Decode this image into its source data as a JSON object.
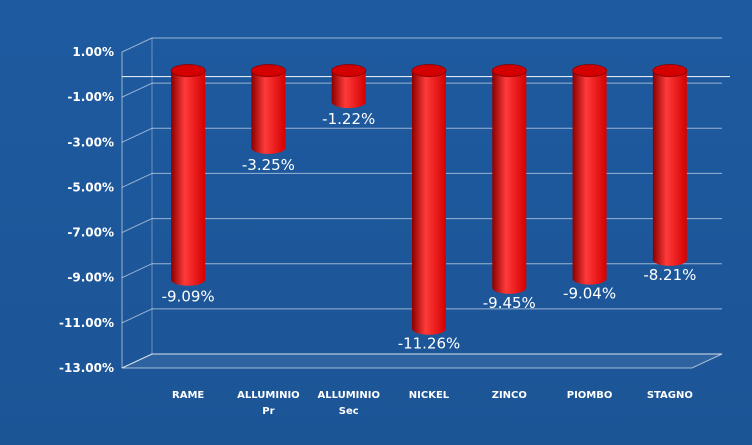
{
  "colors": {
    "background_top": "#1e5aa0",
    "background_bottom": "#1c5596",
    "bar": "#d40000",
    "bar_dark": "#8a0000",
    "bar_light": "#ff3a3a",
    "text": "#ffffff"
  },
  "chart_data": {
    "type": "bar",
    "title": "",
    "xlabel": "",
    "ylabel": "",
    "categories": [
      [
        "RAME"
      ],
      [
        "ALLUMINIO",
        "Pr"
      ],
      [
        "ALLUMINIO",
        "Sec"
      ],
      [
        "NICKEL"
      ],
      [
        "ZINCO"
      ],
      [
        "PIOMBO"
      ],
      [
        "STAGNO"
      ]
    ],
    "values": [
      -9.09,
      -3.25,
      -1.22,
      -11.26,
      -9.45,
      -9.04,
      -8.21
    ],
    "value_labels": [
      "-9.09%",
      "-3.25%",
      "-1.22%",
      "-11.26%",
      "-9.45%",
      "-9.04%",
      "-8.21%"
    ],
    "ylim": [
      -13,
      1
    ],
    "yticks": [
      1,
      -1,
      -3,
      -5,
      -7,
      -9,
      -11,
      -13
    ],
    "ytick_labels": [
      "1.00%",
      "-1.00%",
      "-3.00%",
      "-5.00%",
      "-7.00%",
      "-9.00%",
      "-11.00%",
      "-13.00%"
    ],
    "grid": true,
    "legend": "none"
  }
}
